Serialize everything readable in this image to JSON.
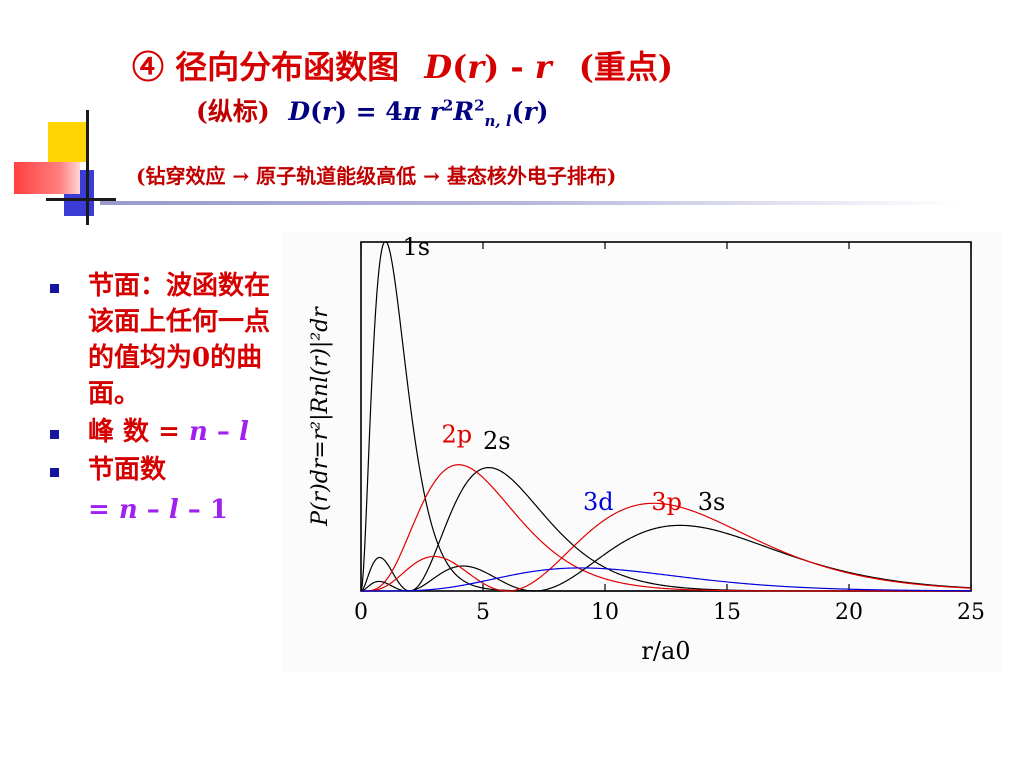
{
  "title": {
    "circle_num": "④",
    "main": "径向分布函数图",
    "formula_D": "D",
    "formula_mid": "(",
    "formula_r": "r",
    "formula_close": ") - ",
    "formula_r2": "r",
    "key": "(重点)"
  },
  "subtitle": {
    "label": "(纵标)",
    "D": "D",
    "open": "(",
    "r": "r",
    "eq": ") = 4",
    "pi": "π",
    "r2": "r",
    "sup2": "2",
    "R": "R",
    "sup2b": "2",
    "sub": "n, l",
    "open2": "(",
    "r3": "r",
    "close2": ")"
  },
  "note": "(钻穿效应 → 原子轨道能级高低 → 基态核外电子排布)",
  "bullets": {
    "b1": "节面：波函数在该面上任何一点的值均为0的曲面。",
    "b2_label": "峰 数 = ",
    "b2_n": "n",
    "b2_minus": " – ",
    "b2_l": "l",
    "b3_label": "节面数",
    "b3_eq": "= ",
    "b3_n": "n",
    "b3_m1": " – ",
    "b3_l": "l",
    "b3_m2": " – 1"
  },
  "colors": {
    "title_red": "#d60000",
    "formula_navy": "#000080",
    "bullet_purple": "#a020f0",
    "bullet_square": "#1515a0",
    "curve_black": "#000000",
    "curve_red": "#e00000",
    "curve_blue": "#0000e0"
  },
  "chart_data": {
    "type": "line",
    "title": "",
    "xlabel": "r/a0",
    "ylabel": "P(r)dr=r²|Rnl(r)|²dr",
    "xlim": [
      0,
      25
    ],
    "ylim": [
      0,
      0.54
    ],
    "x_ticks": [
      0,
      5,
      10,
      15,
      20,
      25
    ],
    "x_tick_labels": [
      "0",
      "5",
      "10",
      "15",
      "20",
      "25"
    ],
    "grid": false,
    "legend": "inline labels",
    "series": [
      {
        "name": "1s",
        "color": "#000000",
        "label_x": 1.7,
        "label_y": 0.52
      },
      {
        "name": "2s",
        "color": "#000000",
        "label_x": 5.0,
        "label_y": 0.22
      },
      {
        "name": "2p",
        "color": "#e00000",
        "label_x": 3.3,
        "label_y": 0.23
      },
      {
        "name": "3s",
        "color": "#000000",
        "label_x": 13.8,
        "label_y": 0.125
      },
      {
        "name": "3p",
        "color": "#e00000",
        "label_x": 11.9,
        "label_y": 0.125
      },
      {
        "name": "3d",
        "color": "#0000e0",
        "label_x": 9.1,
        "label_y": 0.125
      }
    ]
  }
}
